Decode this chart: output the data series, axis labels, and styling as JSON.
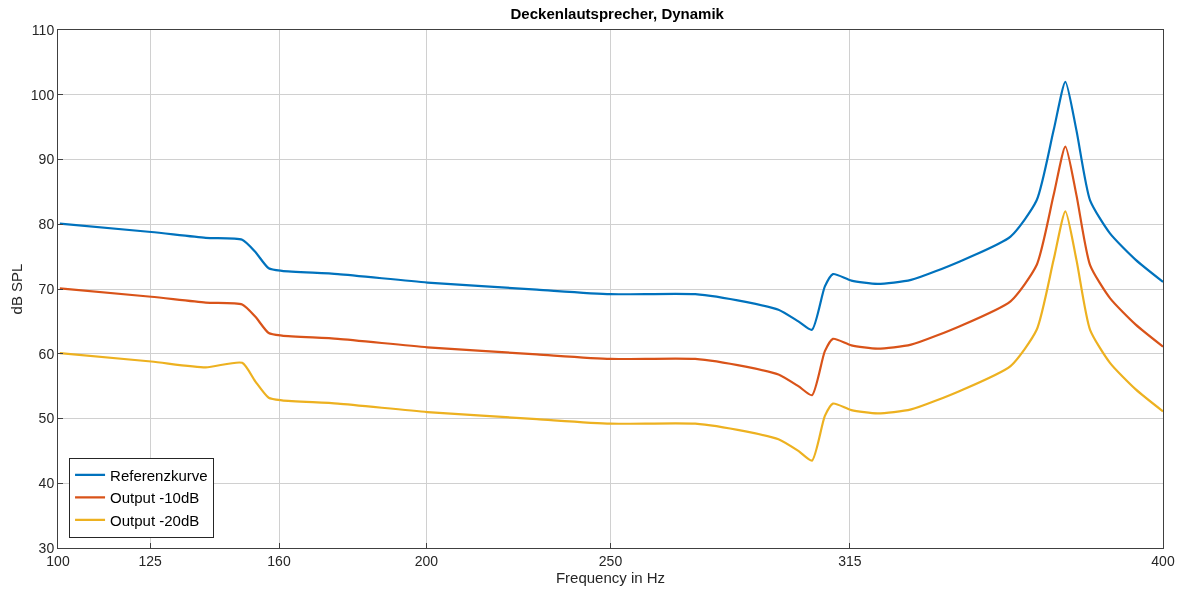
{
  "chart_data": {
    "type": "line",
    "title": "Deckenlautsprecher, Dynamik",
    "xlabel": "Frequency in Hz",
    "ylabel": "dB SPL",
    "x": [
      100.5,
      125.3,
      140.1,
      150,
      153.6,
      157.2,
      160.8,
      176,
      200.3,
      230,
      250,
      273,
      286.7,
      295.6,
      301,
      304.7,
      308.2,
      310.4,
      315.4,
      322.5,
      331.6,
      345,
      358.6,
      365.7,
      370.3,
      373.5,
      376.5,
      380.2,
      385.6,
      392.6,
      400
    ],
    "xlim": [
      100,
      400
    ],
    "xticks": [
      100,
      125,
      160,
      200,
      250,
      315,
      400
    ],
    "ylim": [
      30,
      110
    ],
    "yticks": [
      30,
      40,
      50,
      60,
      70,
      80,
      90,
      100,
      110
    ],
    "grid": true,
    "legend": "bottom left",
    "marker": "none",
    "line_style": "solid",
    "series": [
      {
        "name": "Referenzkurve",
        "color": "#0072bd",
        "values": [
          80.1,
          78.8,
          77.9,
          77.6,
          75.7,
          73.2,
          72.8,
          72.3,
          71.0,
          69.9,
          69.2,
          69.2,
          68.0,
          66.8,
          65.0,
          63.7,
          70.4,
          72.3,
          71.3,
          70.8,
          71.4,
          74.3,
          78.1,
          83.7,
          94.5,
          102,
          94.5,
          83.7,
          78.6,
          74.5,
          71.1
        ]
      },
      {
        "name": "Output -10dB",
        "color": "#d95319",
        "values": [
          70.1,
          68.8,
          67.9,
          67.6,
          65.7,
          63.2,
          62.8,
          62.3,
          61.0,
          59.9,
          59.2,
          59.2,
          58.0,
          56.8,
          55.0,
          53.6,
          60.4,
          62.3,
          61.3,
          60.8,
          61.4,
          64.3,
          68.1,
          73.7,
          84.5,
          92,
          84.5,
          73.7,
          68.6,
          64.5,
          61.1
        ]
      },
      {
        "name": "Output -20dB",
        "color": "#edb120",
        "values": [
          60.1,
          58.8,
          57.9,
          58.6,
          55.7,
          53.2,
          52.8,
          52.3,
          51.0,
          49.9,
          49.2,
          49.2,
          48.0,
          46.8,
          45.0,
          43.5,
          50.4,
          52.3,
          51.3,
          50.8,
          51.4,
          54.3,
          58.1,
          63.7,
          74.5,
          82,
          74.5,
          63.7,
          58.6,
          54.5,
          51.1
        ]
      }
    ]
  }
}
